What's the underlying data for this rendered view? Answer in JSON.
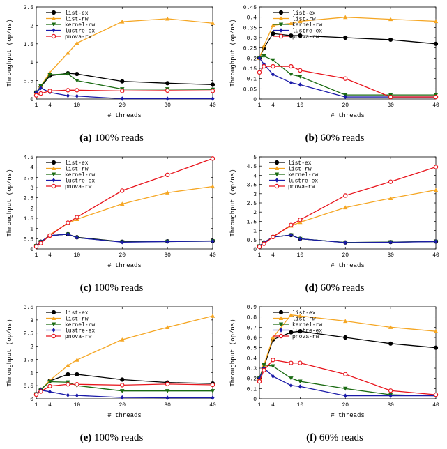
{
  "series_colors": {
    "list-ex": "#000000",
    "list-rw": "#f5a623",
    "kernel-rw": "#1a6b12",
    "lustre-ex": "#1a1aa8",
    "pnova-rw": "#e8141c"
  },
  "chart_data": [
    {
      "id": "a",
      "type": "line",
      "caption_label": "(a)",
      "caption_text": "100% reads",
      "xlabel": "# threads",
      "ylabel": "Throughput (op/ns)",
      "x": [
        1,
        2,
        4,
        8,
        10,
        20,
        30,
        40
      ],
      "xticks": [
        1,
        4,
        10,
        20,
        30,
        40
      ],
      "xlim": [
        1,
        40
      ],
      "ylim": [
        0,
        2.5
      ],
      "yticks": [
        0,
        0.5,
        1,
        1.5,
        2,
        2.5
      ],
      "ytick_labels": [
        "0",
        "0.5",
        "1",
        "1.5",
        "2",
        "2.5"
      ],
      "legend_position": "top-left",
      "series": [
        {
          "name": "list-ex",
          "values": [
            0.18,
            0.33,
            0.63,
            0.7,
            0.68,
            0.48,
            0.43,
            0.39
          ]
        },
        {
          "name": "list-rw",
          "values": [
            0.18,
            0.35,
            0.72,
            1.25,
            1.52,
            2.1,
            2.18,
            2.06
          ]
        },
        {
          "name": "kernel-rw",
          "values": [
            0.18,
            0.35,
            0.66,
            0.68,
            0.5,
            0.27,
            0.27,
            0.26
          ]
        },
        {
          "name": "lustre-ex",
          "values": [
            0.18,
            0.3,
            0.18,
            0.09,
            0.08,
            0.01,
            0.01,
            0.01
          ]
        },
        {
          "name": "pnova-rw",
          "values": [
            0.1,
            0.15,
            0.22,
            0.24,
            0.24,
            0.22,
            0.23,
            0.22
          ]
        }
      ]
    },
    {
      "id": "b",
      "type": "line",
      "caption_label": "(b)",
      "caption_text": "60% reads",
      "xlabel": "# threads",
      "ylabel": "Throughput (op/ns)",
      "x": [
        1,
        2,
        4,
        8,
        10,
        20,
        30,
        40
      ],
      "xticks": [
        1,
        4,
        10,
        20,
        30,
        40
      ],
      "xlim": [
        1,
        40
      ],
      "ylim": [
        0,
        0.45
      ],
      "yticks": [
        0,
        0.05,
        0.1,
        0.15,
        0.2,
        0.25,
        0.3,
        0.35,
        0.4,
        0.45
      ],
      "ytick_labels": [
        "0",
        "0.05",
        "0.1",
        "0.15",
        "0.2",
        "0.25",
        "0.3",
        "0.35",
        "0.4",
        "0.45"
      ],
      "legend_position": "top-center",
      "series": [
        {
          "name": "list-ex",
          "values": [
            0.2,
            0.25,
            0.32,
            0.31,
            0.31,
            0.3,
            0.29,
            0.27
          ]
        },
        {
          "name": "list-rw",
          "values": [
            0.2,
            0.26,
            0.36,
            0.37,
            0.38,
            0.4,
            0.39,
            0.38
          ]
        },
        {
          "name": "kernel-rw",
          "values": [
            0.2,
            0.21,
            0.19,
            0.12,
            0.11,
            0.02,
            0.02,
            0.02
          ]
        },
        {
          "name": "lustre-ex",
          "values": [
            0.2,
            0.17,
            0.12,
            0.08,
            0.07,
            0.01,
            0.01,
            0.01
          ]
        },
        {
          "name": "pnova-rw",
          "values": [
            0.13,
            0.16,
            0.16,
            0.16,
            0.14,
            0.1,
            0.01,
            0.01
          ]
        }
      ]
    },
    {
      "id": "c",
      "type": "line",
      "caption_label": "(c)",
      "caption_text": "100% reads",
      "xlabel": "# threads",
      "ylabel": "Throughput (op/ns)",
      "x": [
        1,
        2,
        4,
        8,
        10,
        20,
        30,
        40
      ],
      "xticks": [
        1,
        4,
        10,
        20,
        30,
        40
      ],
      "xlim": [
        1,
        40
      ],
      "ylim": [
        0,
        4.5
      ],
      "yticks": [
        0,
        0.5,
        1,
        1.5,
        2,
        2.5,
        3,
        3.5,
        4,
        4.5
      ],
      "ytick_labels": [
        "0",
        "0.5",
        "1",
        "1.5",
        "2",
        "2.5",
        "3",
        "3.5",
        "4",
        "4.5"
      ],
      "legend_position": "top-left",
      "series": [
        {
          "name": "list-ex",
          "values": [
            0.15,
            0.35,
            0.65,
            0.72,
            0.57,
            0.35,
            0.37,
            0.39
          ]
        },
        {
          "name": "list-rw",
          "values": [
            0.15,
            0.3,
            0.7,
            1.25,
            1.45,
            2.2,
            2.75,
            3.05
          ]
        },
        {
          "name": "kernel-rw",
          "values": [
            0.15,
            0.35,
            0.65,
            0.72,
            0.55,
            0.34,
            0.36,
            0.38
          ]
        },
        {
          "name": "lustre-ex",
          "values": [
            0.15,
            0.35,
            0.65,
            0.72,
            0.55,
            0.33,
            0.36,
            0.38
          ]
        },
        {
          "name": "pnova-rw",
          "values": [
            0.12,
            0.28,
            0.65,
            1.28,
            1.55,
            2.85,
            3.62,
            4.42
          ]
        }
      ]
    },
    {
      "id": "d",
      "type": "line",
      "caption_label": "(d)",
      "caption_text": "60% reads",
      "xlabel": "# threads",
      "ylabel": "Throughput (op/ns)",
      "x": [
        1,
        2,
        4,
        8,
        10,
        20,
        30,
        40
      ],
      "xticks": [
        1,
        4,
        10,
        20,
        30,
        40
      ],
      "xlim": [
        1,
        40
      ],
      "ylim": [
        0,
        5
      ],
      "yticks": [
        0,
        0.5,
        1,
        1.5,
        2,
        2.5,
        3,
        3.5,
        4,
        4.5,
        5
      ],
      "ytick_labels": [
        "0",
        "0.5",
        "1",
        "1.5",
        "2",
        "2.5",
        "3",
        "3.5",
        "4",
        "4.5",
        "5"
      ],
      "legend_position": "top-left",
      "series": [
        {
          "name": "list-ex",
          "values": [
            0.15,
            0.35,
            0.65,
            0.75,
            0.55,
            0.35,
            0.37,
            0.4
          ]
        },
        {
          "name": "list-rw",
          "values": [
            0.15,
            0.3,
            0.68,
            1.25,
            1.45,
            2.25,
            2.75,
            3.2
          ]
        },
        {
          "name": "kernel-rw",
          "values": [
            0.15,
            0.35,
            0.65,
            0.75,
            0.55,
            0.35,
            0.37,
            0.4
          ]
        },
        {
          "name": "lustre-ex",
          "values": [
            0.15,
            0.35,
            0.65,
            0.75,
            0.55,
            0.34,
            0.36,
            0.4
          ]
        },
        {
          "name": "pnova-rw",
          "values": [
            0.12,
            0.28,
            0.65,
            1.3,
            1.58,
            2.9,
            3.65,
            4.45
          ]
        }
      ]
    },
    {
      "id": "e",
      "type": "line",
      "caption_label": "(e)",
      "caption_text": "100% reads",
      "xlabel": "# threads",
      "ylabel": "Throughput (op/ns)",
      "x": [
        1,
        2,
        4,
        8,
        10,
        20,
        30,
        40
      ],
      "xticks": [
        1,
        4,
        10,
        20,
        30,
        40
      ],
      "xlim": [
        1,
        40
      ],
      "ylim": [
        0,
        3.5
      ],
      "yticks": [
        0,
        0.5,
        1,
        1.5,
        2,
        2.5,
        3,
        3.5
      ],
      "ytick_labels": [
        "0",
        "0.5",
        "1",
        "1.5",
        "2",
        "2.5",
        "3",
        "3.5"
      ],
      "legend_position": "top-left",
      "series": [
        {
          "name": "list-ex",
          "values": [
            0.18,
            0.35,
            0.68,
            0.93,
            0.93,
            0.73,
            0.62,
            0.58
          ]
        },
        {
          "name": "list-rw",
          "values": [
            0.18,
            0.33,
            0.7,
            1.27,
            1.48,
            2.25,
            2.72,
            3.15
          ]
        },
        {
          "name": "kernel-rw",
          "values": [
            0.18,
            0.35,
            0.65,
            0.63,
            0.5,
            0.3,
            0.3,
            0.3
          ]
        },
        {
          "name": "lustre-ex",
          "values": [
            0.18,
            0.33,
            0.27,
            0.14,
            0.13,
            0.05,
            0.04,
            0.04
          ]
        },
        {
          "name": "pnova-rw",
          "values": [
            0.16,
            0.28,
            0.48,
            0.55,
            0.55,
            0.52,
            0.56,
            0.53
          ]
        }
      ]
    },
    {
      "id": "f",
      "type": "line",
      "caption_label": "(f)",
      "caption_text": "60% reads",
      "xlabel": "# threads",
      "ylabel": "Throughput (op/ns)",
      "x": [
        1,
        2,
        4,
        8,
        10,
        20,
        30,
        40
      ],
      "xticks": [
        1,
        4,
        10,
        20,
        30,
        40
      ],
      "xlim": [
        1,
        40
      ],
      "ylim": [
        0,
        0.9
      ],
      "yticks": [
        0,
        0.1,
        0.2,
        0.3,
        0.4,
        0.5,
        0.6,
        0.7,
        0.8,
        0.9
      ],
      "ytick_labels": [
        "0",
        "0.1",
        "0.2",
        "0.3",
        "0.4",
        "0.5",
        "0.6",
        "0.7",
        "0.8",
        "0.9"
      ],
      "legend_position": "top-center",
      "series": [
        {
          "name": "list-ex",
          "values": [
            0.2,
            0.31,
            0.58,
            0.65,
            0.66,
            0.6,
            0.54,
            0.5
          ]
        },
        {
          "name": "list-rw",
          "values": [
            0.2,
            0.33,
            0.6,
            0.82,
            0.81,
            0.76,
            0.7,
            0.66
          ]
        },
        {
          "name": "kernel-rw",
          "values": [
            0.2,
            0.33,
            0.32,
            0.2,
            0.17,
            0.1,
            0.04,
            0.03
          ]
        },
        {
          "name": "lustre-ex",
          "values": [
            0.2,
            0.3,
            0.22,
            0.13,
            0.12,
            0.03,
            0.03,
            0.03
          ]
        },
        {
          "name": "pnova-rw",
          "values": [
            0.17,
            0.28,
            0.38,
            0.35,
            0.35,
            0.24,
            0.08,
            0.04
          ]
        }
      ]
    }
  ]
}
